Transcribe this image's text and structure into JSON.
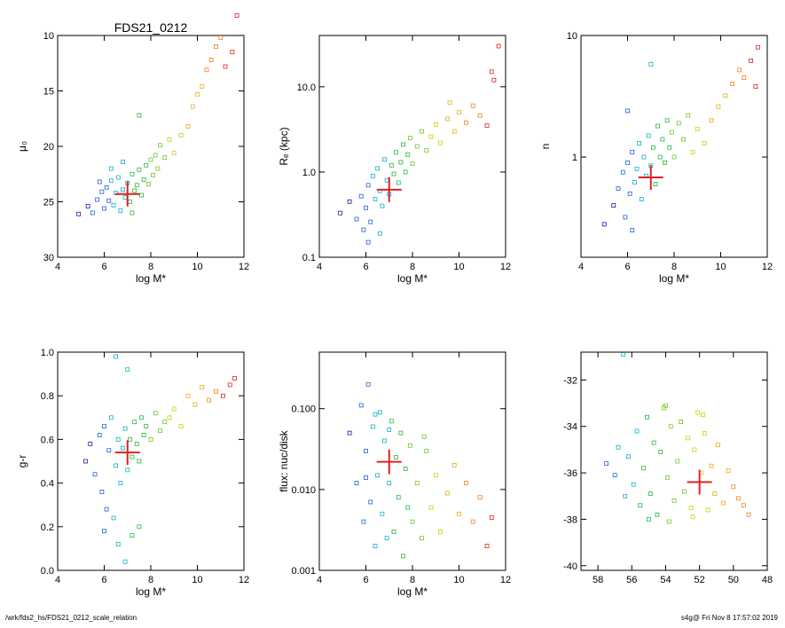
{
  "header": {
    "title": "FDS21_0212"
  },
  "footer": {
    "path": "/wrk/fds2_hs/FDS21_0212_scale_relation",
    "stamp": "s4g@  Fri Nov  8 17:57:02 2019"
  },
  "chart_data": [
    {
      "type": "scatter",
      "xlabel": "log M*",
      "ylabel": "μ₀",
      "xlim": [
        4,
        12
      ],
      "ylim": [
        30,
        10
      ],
      "yscale": "linear",
      "y_reversed": true,
      "xticks": [
        4,
        6,
        8,
        10,
        12
      ],
      "xtick_labels": [
        "4",
        "6",
        "8",
        "10",
        "12"
      ],
      "yticks": [
        10,
        15,
        20,
        25,
        30
      ],
      "ytick_labels": [
        "10",
        "15",
        "20",
        "25",
        "30"
      ],
      "highlight": {
        "x": 7.0,
        "y": 24.3
      },
      "points": [
        [
          4.9,
          26.1
        ],
        [
          5.3,
          25.4
        ],
        [
          5.5,
          26.0
        ],
        [
          5.7,
          24.8
        ],
        [
          5.9,
          24.1
        ],
        [
          6.0,
          25.6
        ],
        [
          6.1,
          23.7
        ],
        [
          6.2,
          24.9
        ],
        [
          6.3,
          23.1
        ],
        [
          6.4,
          25.3
        ],
        [
          6.5,
          24.2
        ],
        [
          6.6,
          22.8
        ],
        [
          6.7,
          25.8
        ],
        [
          6.8,
          23.9
        ],
        [
          6.9,
          24.6
        ],
        [
          7.0,
          23.3
        ],
        [
          7.1,
          25.0
        ],
        [
          7.2,
          22.5
        ],
        [
          7.3,
          24.0
        ],
        [
          7.4,
          23.5
        ],
        [
          7.5,
          22.1
        ],
        [
          7.6,
          24.4
        ],
        [
          7.7,
          23.0
        ],
        [
          7.8,
          21.7
        ],
        [
          7.9,
          23.4
        ],
        [
          8.0,
          21.2
        ],
        [
          8.1,
          22.6
        ],
        [
          8.2,
          20.8
        ],
        [
          8.3,
          22.0
        ],
        [
          8.4,
          19.9
        ],
        [
          8.6,
          21.0
        ],
        [
          8.8,
          19.4
        ],
        [
          9.0,
          20.6
        ],
        [
          9.3,
          19.0
        ],
        [
          9.6,
          18.2
        ],
        [
          9.8,
          16.4
        ],
        [
          10.0,
          15.3
        ],
        [
          10.2,
          14.6
        ],
        [
          10.4,
          13.1
        ],
        [
          10.6,
          12.2
        ],
        [
          10.8,
          11.0
        ],
        [
          11.0,
          10.2
        ],
        [
          11.2,
          12.8
        ],
        [
          11.5,
          11.5
        ],
        [
          11.7,
          8.2
        ],
        [
          6.3,
          22.0
        ],
        [
          6.8,
          21.4
        ],
        [
          7.5,
          17.2
        ],
        [
          7.2,
          26.0
        ],
        [
          5.8,
          23.2
        ]
      ]
    },
    {
      "type": "scatter",
      "xlabel": "log M*",
      "ylabel": "Rₑ (kpc)",
      "xlim": [
        4,
        12
      ],
      "ylim": [
        0.1,
        40
      ],
      "yscale": "log",
      "xticks": [
        4,
        6,
        8,
        10,
        12
      ],
      "xtick_labels": [
        "4",
        "6",
        "8",
        "10",
        "12"
      ],
      "yticks": [
        0.1,
        1,
        10
      ],
      "ytick_labels": [
        "0.1",
        "1.0",
        "10.0"
      ],
      "highlight": {
        "x": 7.0,
        "y": 0.62
      },
      "points": [
        [
          4.9,
          0.33
        ],
        [
          5.3,
          0.45
        ],
        [
          5.6,
          0.28
        ],
        [
          5.8,
          0.52
        ],
        [
          5.9,
          0.21
        ],
        [
          6.0,
          0.38
        ],
        [
          6.1,
          0.7
        ],
        [
          6.2,
          0.26
        ],
        [
          6.3,
          0.9
        ],
        [
          6.4,
          0.48
        ],
        [
          6.5,
          1.1
        ],
        [
          6.6,
          0.6
        ],
        [
          6.7,
          0.4
        ],
        [
          6.8,
          1.4
        ],
        [
          6.9,
          0.8
        ],
        [
          7.0,
          0.55
        ],
        [
          7.1,
          1.2
        ],
        [
          7.2,
          0.95
        ],
        [
          7.3,
          1.7
        ],
        [
          7.4,
          0.75
        ],
        [
          7.5,
          1.3
        ],
        [
          7.6,
          2.1
        ],
        [
          7.7,
          1.0
        ],
        [
          7.8,
          1.6
        ],
        [
          7.9,
          2.5
        ],
        [
          8.0,
          1.25
        ],
        [
          8.2,
          2.0
        ],
        [
          8.4,
          3.0
        ],
        [
          8.6,
          1.8
        ],
        [
          8.8,
          2.6
        ],
        [
          9.0,
          3.6
        ],
        [
          9.2,
          2.2
        ],
        [
          9.5,
          4.2
        ],
        [
          9.8,
          3.0
        ],
        [
          10.0,
          5.0
        ],
        [
          10.3,
          3.8
        ],
        [
          10.6,
          6.0
        ],
        [
          10.9,
          4.6
        ],
        [
          11.2,
          3.5
        ],
        [
          11.5,
          12.0
        ],
        [
          11.7,
          30.0
        ],
        [
          11.4,
          15.0
        ],
        [
          6.1,
          0.15
        ],
        [
          6.6,
          0.19
        ],
        [
          9.6,
          6.5
        ]
      ]
    },
    {
      "type": "scatter",
      "xlabel": "log M*",
      "ylabel": "n",
      "xlim": [
        4,
        12
      ],
      "ylim": [
        0.15,
        10
      ],
      "yscale": "log",
      "xticks": [
        4,
        6,
        8,
        10,
        12
      ],
      "xtick_labels": [
        "4",
        "6",
        "8",
        "10",
        "12"
      ],
      "yticks": [
        1,
        10
      ],
      "ytick_labels": [
        "1",
        "10"
      ],
      "highlight": {
        "x": 7.0,
        "y": 0.68
      },
      "points": [
        [
          5.0,
          0.28
        ],
        [
          5.4,
          0.4
        ],
        [
          5.6,
          0.55
        ],
        [
          5.8,
          0.75
        ],
        [
          5.9,
          0.32
        ],
        [
          6.0,
          0.9
        ],
        [
          6.1,
          0.5
        ],
        [
          6.2,
          1.1
        ],
        [
          6.3,
          0.62
        ],
        [
          6.4,
          0.8
        ],
        [
          6.5,
          1.3
        ],
        [
          6.6,
          0.45
        ],
        [
          6.7,
          1.0
        ],
        [
          6.8,
          0.7
        ],
        [
          6.9,
          1.5
        ],
        [
          7.0,
          0.85
        ],
        [
          7.1,
          1.2
        ],
        [
          7.2,
          0.6
        ],
        [
          7.3,
          1.8
        ],
        [
          7.4,
          1.0
        ],
        [
          7.5,
          1.4
        ],
        [
          7.6,
          0.9
        ],
        [
          7.7,
          2.0
        ],
        [
          7.8,
          1.2
        ],
        [
          7.9,
          1.6
        ],
        [
          8.0,
          1.0
        ],
        [
          8.2,
          1.9
        ],
        [
          8.4,
          1.4
        ],
        [
          8.6,
          2.2
        ],
        [
          8.8,
          1.1
        ],
        [
          9.0,
          1.7
        ],
        [
          9.3,
          1.3
        ],
        [
          9.6,
          2.0
        ],
        [
          9.9,
          2.6
        ],
        [
          10.2,
          3.2
        ],
        [
          10.5,
          4.0
        ],
        [
          10.8,
          5.2
        ],
        [
          11.0,
          4.5
        ],
        [
          11.3,
          6.2
        ],
        [
          11.6,
          8.0
        ],
        [
          11.5,
          3.8
        ],
        [
          6.0,
          2.4
        ],
        [
          7.0,
          5.8
        ],
        [
          6.2,
          0.25
        ]
      ]
    },
    {
      "type": "scatter",
      "xlabel": "log M*",
      "ylabel": "g-r",
      "xlim": [
        4,
        12
      ],
      "ylim": [
        0.0,
        1.0
      ],
      "yscale": "linear",
      "xticks": [
        4,
        6,
        8,
        10,
        12
      ],
      "xtick_labels": [
        "4",
        "6",
        "8",
        "10",
        "12"
      ],
      "yticks": [
        0.0,
        0.2,
        0.4,
        0.6,
        0.8,
        1.0
      ],
      "ytick_labels": [
        "0.0",
        "0.2",
        "0.4",
        "0.6",
        "0.8",
        "1.0"
      ],
      "highlight": {
        "x": 7.0,
        "y": 0.54
      },
      "points": [
        [
          5.2,
          0.5
        ],
        [
          5.4,
          0.58
        ],
        [
          5.6,
          0.44
        ],
        [
          5.8,
          0.62
        ],
        [
          5.9,
          0.36
        ],
        [
          6.0,
          0.66
        ],
        [
          6.1,
          0.28
        ],
        [
          6.2,
          0.55
        ],
        [
          6.3,
          0.7
        ],
        [
          6.4,
          0.24
        ],
        [
          6.5,
          0.48
        ],
        [
          6.6,
          0.6
        ],
        [
          6.7,
          0.4
        ],
        [
          6.8,
          0.56
        ],
        [
          6.9,
          0.65
        ],
        [
          7.0,
          0.46
        ],
        [
          7.1,
          0.6
        ],
        [
          7.2,
          0.52
        ],
        [
          7.3,
          0.68
        ],
        [
          7.4,
          0.58
        ],
        [
          7.5,
          0.5
        ],
        [
          7.6,
          0.7
        ],
        [
          7.7,
          0.62
        ],
        [
          7.8,
          0.66
        ],
        [
          8.0,
          0.6
        ],
        [
          8.2,
          0.72
        ],
        [
          8.4,
          0.64
        ],
        [
          8.6,
          0.68
        ],
        [
          8.8,
          0.7
        ],
        [
          9.0,
          0.74
        ],
        [
          9.3,
          0.66
        ],
        [
          9.6,
          0.8
        ],
        [
          9.9,
          0.76
        ],
        [
          10.2,
          0.84
        ],
        [
          10.5,
          0.78
        ],
        [
          10.8,
          0.82
        ],
        [
          11.1,
          0.8
        ],
        [
          11.4,
          0.85
        ],
        [
          11.6,
          0.88
        ],
        [
          6.5,
          0.98
        ],
        [
          7.0,
          0.92
        ],
        [
          6.6,
          0.12
        ],
        [
          7.5,
          0.2
        ],
        [
          6.9,
          0.04
        ],
        [
          6.0,
          0.18
        ],
        [
          7.2,
          0.16
        ]
      ]
    },
    {
      "type": "scatter",
      "xlabel": "log M*",
      "ylabel": "flux: nuc/disk",
      "xlim": [
        4,
        12
      ],
      "ylim": [
        0.001,
        0.5
      ],
      "yscale": "log",
      "xticks": [
        4,
        6,
        8,
        10,
        12
      ],
      "xtick_labels": [
        "4",
        "6",
        "8",
        "10",
        "12"
      ],
      "yticks": [
        0.001,
        0.01,
        0.1
      ],
      "ytick_labels": [
        "0.001",
        "0.010",
        "0.100"
      ],
      "highlight": {
        "x": 7.0,
        "y": 0.022
      },
      "points": [
        [
          5.3,
          0.05
        ],
        [
          5.6,
          0.012
        ],
        [
          5.8,
          0.11
        ],
        [
          5.9,
          0.004
        ],
        [
          6.0,
          0.03
        ],
        [
          6.1,
          0.2
        ],
        [
          6.2,
          0.007
        ],
        [
          6.3,
          0.06
        ],
        [
          6.4,
          0.002
        ],
        [
          6.5,
          0.015
        ],
        [
          6.6,
          0.09
        ],
        [
          6.7,
          0.005
        ],
        [
          6.8,
          0.04
        ],
        [
          6.9,
          0.0025
        ],
        [
          7.0,
          0.012
        ],
        [
          7.1,
          0.07
        ],
        [
          7.2,
          0.003
        ],
        [
          7.3,
          0.025
        ],
        [
          7.4,
          0.008
        ],
        [
          7.5,
          0.05
        ],
        [
          7.6,
          0.0015
        ],
        [
          7.7,
          0.018
        ],
        [
          7.8,
          0.006
        ],
        [
          7.9,
          0.035
        ],
        [
          8.0,
          0.004
        ],
        [
          8.2,
          0.012
        ],
        [
          8.4,
          0.0025
        ],
        [
          8.6,
          0.03
        ],
        [
          8.8,
          0.006
        ],
        [
          9.0,
          0.015
        ],
        [
          9.2,
          0.003
        ],
        [
          9.5,
          0.009
        ],
        [
          9.8,
          0.02
        ],
        [
          10.0,
          0.005
        ],
        [
          10.3,
          0.012
        ],
        [
          10.6,
          0.004
        ],
        [
          10.9,
          0.008
        ],
        [
          11.2,
          0.002
        ],
        [
          11.4,
          0.0045
        ],
        [
          6.0,
          0.014
        ],
        [
          7.0,
          0.055
        ],
        [
          8.5,
          0.045
        ],
        [
          6.4,
          0.085
        ]
      ]
    },
    {
      "type": "scatter",
      "xlabel": "",
      "ylabel": "",
      "xlim": [
        59,
        48
      ],
      "ylim": [
        -40.2,
        -30.8
      ],
      "yscale": "linear",
      "x_reversed": true,
      "xticks": [
        58,
        56,
        54,
        52,
        50,
        48
      ],
      "xtick_labels": [
        "58",
        "56",
        "54",
        "52",
        "50",
        "48"
      ],
      "yticks": [
        -40,
        -38,
        -36,
        -34,
        -32
      ],
      "ytick_labels": [
        "-40",
        "-38",
        "-36",
        "-34",
        "-32"
      ],
      "highlight": {
        "x": 52.0,
        "y": -36.4
      },
      "points": [
        [
          57.5,
          -35.6
        ],
        [
          57.0,
          -36.1
        ],
        [
          56.8,
          -34.9
        ],
        [
          56.4,
          -37.0
        ],
        [
          56.2,
          -35.3
        ],
        [
          55.9,
          -36.5
        ],
        [
          55.7,
          -34.2
        ],
        [
          55.5,
          -37.4
        ],
        [
          55.3,
          -35.8
        ],
        [
          55.1,
          -33.6
        ],
        [
          54.9,
          -36.9
        ],
        [
          54.7,
          -34.7
        ],
        [
          54.5,
          -37.8
        ],
        [
          54.3,
          -35.1
        ],
        [
          54.1,
          -33.2
        ],
        [
          53.9,
          -36.2
        ],
        [
          53.7,
          -34.0
        ],
        [
          53.5,
          -37.2
        ],
        [
          53.3,
          -35.5
        ],
        [
          53.1,
          -33.8
        ],
        [
          52.9,
          -36.8
        ],
        [
          52.7,
          -34.5
        ],
        [
          52.5,
          -37.5
        ],
        [
          52.3,
          -35.0
        ],
        [
          52.1,
          -33.4
        ],
        [
          51.9,
          -36.0
        ],
        [
          51.7,
          -34.3
        ],
        [
          51.5,
          -37.6
        ],
        [
          51.3,
          -35.7
        ],
        [
          51.1,
          -36.9
        ],
        [
          50.9,
          -34.8
        ],
        [
          50.6,
          -37.3
        ],
        [
          50.3,
          -35.9
        ],
        [
          50.0,
          -36.6
        ],
        [
          49.7,
          -37.1
        ],
        [
          49.4,
          -37.4
        ],
        [
          49.1,
          -37.8
        ],
        [
          55.0,
          -38.0
        ],
        [
          53.8,
          -38.1
        ],
        [
          52.4,
          -37.9
        ],
        [
          56.5,
          -30.9
        ],
        [
          54.0,
          -33.1
        ],
        [
          51.8,
          -33.5
        ]
      ]
    }
  ]
}
